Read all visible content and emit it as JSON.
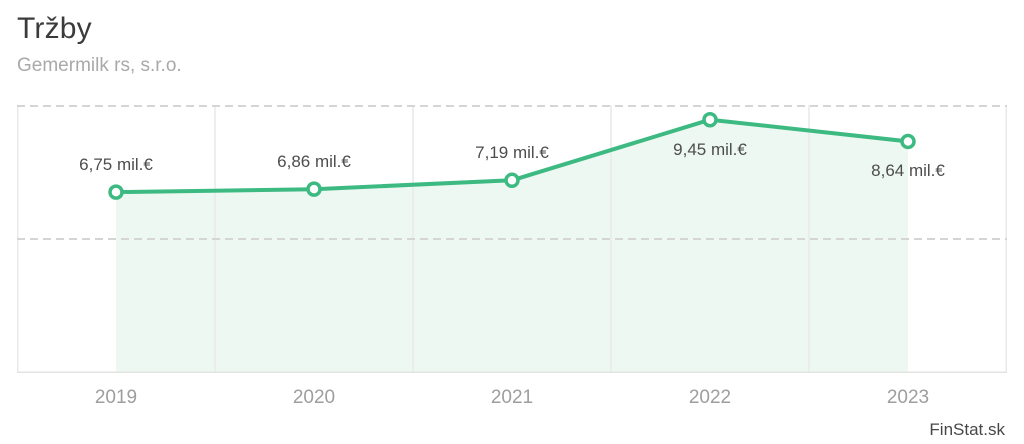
{
  "header": {
    "title": "Tržby",
    "subtitle": "Gemermilk rs, s.r.o."
  },
  "watermark": "FinStat.sk",
  "colors": {
    "line": "#3dba82",
    "marker_ring": "#3dba82",
    "marker_fill": "#ffffff",
    "area_fill": "#edf8f2",
    "grid_vertical": "#e9e9e9",
    "grid_dashed": "#d5d5d5",
    "axis_baseline": "#e3e3e3",
    "data_label_text": "#4d4d4d",
    "axis_text": "#9e9e9e",
    "title_text": "#3b3b3b",
    "subtitle_text": "#a9a9a9",
    "watermark_text": "#474747"
  },
  "chart_data": {
    "type": "area",
    "title": "Tržby",
    "subtitle": "Gemermilk rs, s.r.o.",
    "categories": [
      "2019",
      "2020",
      "2021",
      "2022",
      "2023"
    ],
    "values": [
      6.75,
      6.86,
      7.19,
      9.45,
      8.64
    ],
    "labels": [
      "6,75 mil.€",
      "6,86 mil.€",
      "7,19 mil.€",
      "9,45 mil.€",
      "8,64 mil.€"
    ],
    "label_positions": [
      "above",
      "above",
      "above",
      "below",
      "below"
    ],
    "unit": "mil.€",
    "xlabel": "",
    "ylabel": "",
    "ylim": [
      0,
      10
    ],
    "horizontal_gridline_values": [
      5,
      10
    ],
    "grid": "horizontal dashed at 5 and 10, vertical solid at band edges, no y tick labels",
    "legend": "none"
  }
}
